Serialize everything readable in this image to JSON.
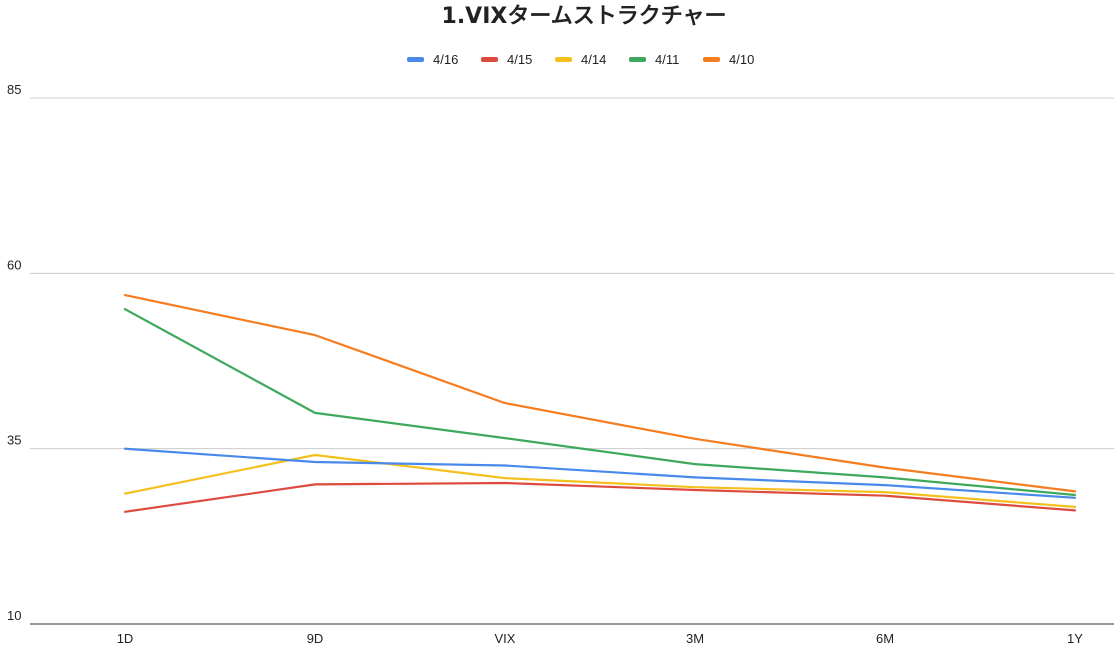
{
  "chart_data": {
    "type": "line",
    "title": "1.VIXタームストラクチャー",
    "xlabel": "",
    "ylabel": "",
    "categories": [
      "1D",
      "9D",
      "VIX",
      "3M",
      "6M",
      "1Y"
    ],
    "ylim": [
      10,
      85
    ],
    "yticks": [
      10,
      35,
      60,
      85
    ],
    "grid": true,
    "legend_position": "top",
    "series": [
      {
        "name": "4/16",
        "color": "#4a89ec",
        "values": [
          35.0,
          33.1,
          32.6,
          30.9,
          29.8,
          28.0
        ]
      },
      {
        "name": "4/15",
        "color": "#dd4b3e",
        "values": [
          26.0,
          29.9,
          30.1,
          29.1,
          28.3,
          26.2
        ]
      },
      {
        "name": "4/14",
        "color": "#f4c01e",
        "values": [
          28.6,
          34.1,
          30.8,
          29.5,
          28.8,
          26.7
        ]
      },
      {
        "name": "4/11",
        "color": "#3ea95c",
        "values": [
          54.9,
          40.1,
          36.5,
          32.8,
          30.9,
          28.4
        ]
      },
      {
        "name": "4/10",
        "color": "#f57c1f",
        "values": [
          56.9,
          51.2,
          41.5,
          36.4,
          32.3,
          28.9
        ]
      }
    ]
  }
}
